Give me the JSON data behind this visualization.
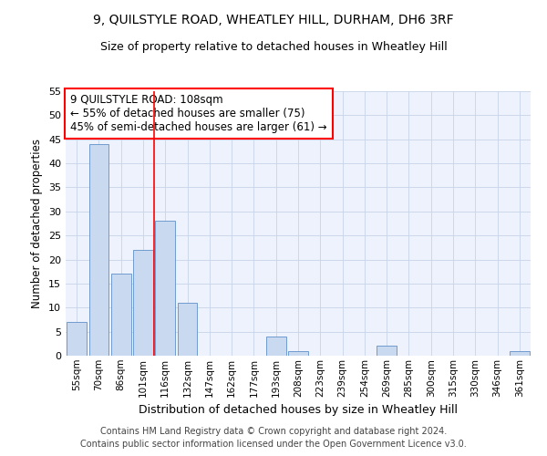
{
  "title1": "9, QUILSTYLE ROAD, WHEATLEY HILL, DURHAM, DH6 3RF",
  "title2": "Size of property relative to detached houses in Wheatley Hill",
  "xlabel": "Distribution of detached houses by size in Wheatley Hill",
  "ylabel": "Number of detached properties",
  "categories": [
    "55sqm",
    "70sqm",
    "86sqm",
    "101sqm",
    "116sqm",
    "132sqm",
    "147sqm",
    "162sqm",
    "177sqm",
    "193sqm",
    "208sqm",
    "223sqm",
    "239sqm",
    "254sqm",
    "269sqm",
    "285sqm",
    "300sqm",
    "315sqm",
    "330sqm",
    "346sqm",
    "361sqm"
  ],
  "values": [
    7,
    44,
    17,
    22,
    28,
    11,
    0,
    0,
    0,
    4,
    1,
    0,
    0,
    0,
    2,
    0,
    0,
    0,
    0,
    0,
    1
  ],
  "bar_color": "#c9d9f0",
  "bar_edge_color": "#6090c8",
  "grid_color": "#c8d4e8",
  "vline_x": 3.5,
  "vline_color": "red",
  "annotation_title": "9 QUILSTYLE ROAD: 108sqm",
  "annotation_line1": "← 55% of detached houses are smaller (75)",
  "annotation_line2": "45% of semi-detached houses are larger (61) →",
  "ylim": [
    0,
    55
  ],
  "yticks": [
    0,
    5,
    10,
    15,
    20,
    25,
    30,
    35,
    40,
    45,
    50,
    55
  ],
  "footnote1": "Contains HM Land Registry data © Crown copyright and database right 2024.",
  "footnote2": "Contains public sector information licensed under the Open Government Licence v3.0.",
  "bg_color": "#eef2fc"
}
